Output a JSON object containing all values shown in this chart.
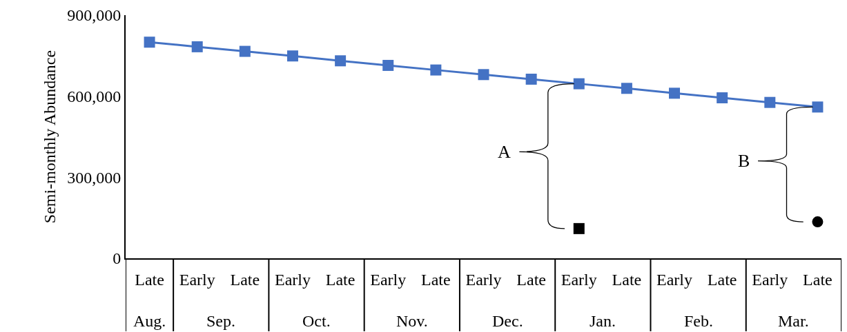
{
  "chart_data": {
    "type": "line",
    "ylabel": "Semi-monthly Abundance",
    "categories": [
      "Late",
      "Early",
      "Late",
      "Early",
      "Late",
      "Early",
      "Late",
      "Early",
      "Late",
      "Early",
      "Late",
      "Early",
      "Late",
      "Early",
      "Late"
    ],
    "series": [
      {
        "color": "#4472c4",
        "marker": "square",
        "values": [
          800000,
          783000,
          766000,
          749000,
          731000,
          714000,
          697000,
          680000,
          663000,
          646000,
          629000,
          611000,
          594000,
          577000,
          560000
        ]
      },
      {
        "type": "scatter",
        "color": "#000000",
        "marker": "square",
        "values": [
          null,
          null,
          null,
          null,
          null,
          null,
          null,
          null,
          null,
          110000,
          null,
          null,
          null,
          null,
          null
        ]
      },
      {
        "type": "scatter",
        "color": "#000000",
        "marker": "circle",
        "values": [
          null,
          null,
          null,
          null,
          null,
          null,
          null,
          null,
          null,
          null,
          null,
          null,
          null,
          null,
          135000
        ]
      }
    ],
    "ylim": [
      0,
      900000
    ],
    "yticks": [
      {
        "value": 0,
        "label": "0"
      },
      {
        "value": 300000,
        "label": "300,000"
      },
      {
        "value": 600000,
        "label": "600,000"
      },
      {
        "value": 900000,
        "label": "900,000"
      }
    ],
    "annotations": [
      "Aug.",
      "Sep.",
      "Oct.",
      "Nov.",
      "Dec.",
      "Jan.",
      "Feb.",
      "Mar.",
      "A",
      "B"
    ]
  }
}
